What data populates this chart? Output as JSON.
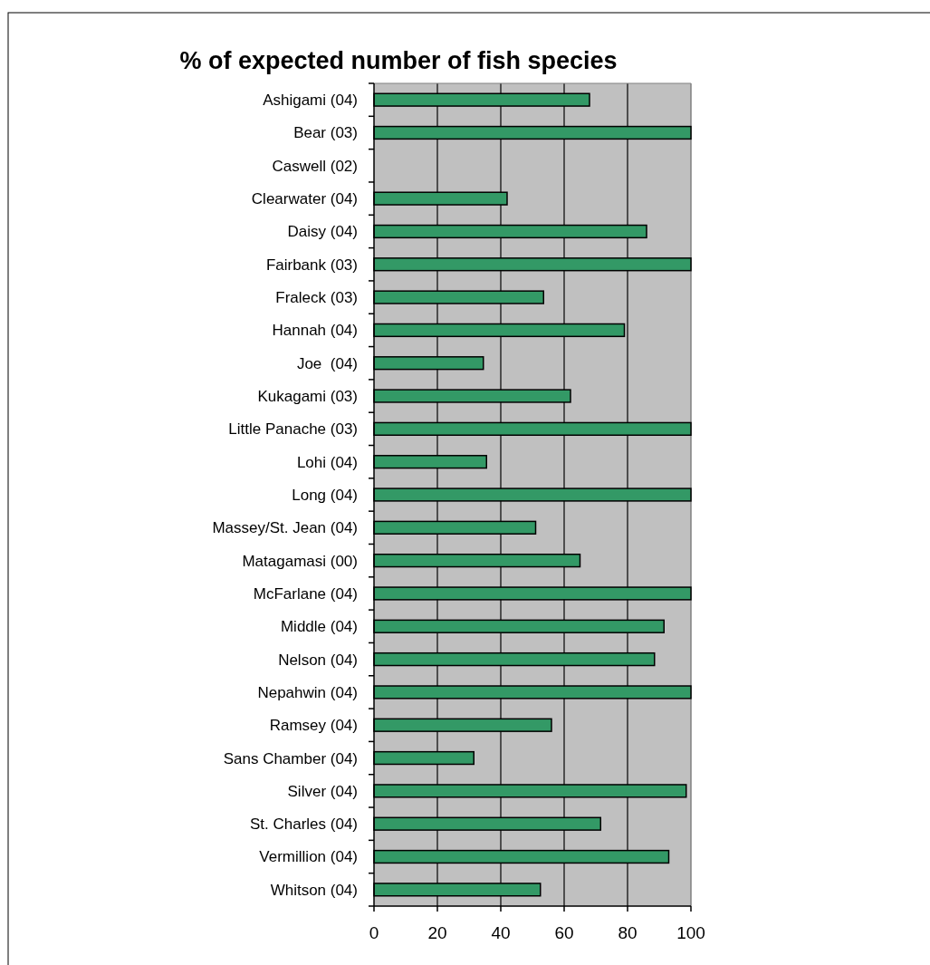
{
  "chart_data": {
    "type": "bar",
    "orientation": "horizontal",
    "title": "% of expected number of fish species",
    "categories": [
      "Ashigami (04)",
      "Bear (03)",
      "Caswell (02)",
      "Clearwater (04)",
      "Daisy (04)",
      "Fairbank (03)",
      "Fraleck (03)",
      "Hannah (04)",
      "Joe  (04)",
      "Kukagami (03)",
      "Little Panache (03)",
      "Lohi (04)",
      "Long (04)",
      "Massey/St. Jean (04)",
      "Matagamasi (00)",
      "McFarlane (04)",
      "Middle (04)",
      "Nelson (04)",
      "Nepahwin (04)",
      "Ramsey (04)",
      "Sans Chamber (04)",
      "Silver (04)",
      "St. Charles (04)",
      "Vermillion (04)",
      "Whitson (04)"
    ],
    "values": [
      68,
      100,
      null,
      42,
      86,
      100,
      53.5,
      79,
      34.5,
      62,
      100,
      35.5,
      100,
      51,
      65,
      100,
      91.5,
      88.5,
      100,
      56,
      31.5,
      98.5,
      71.5,
      93,
      52.5
    ],
    "color": "#339966",
    "xlim": [
      0,
      100
    ],
    "xticks": [
      0,
      20,
      40,
      60,
      80,
      100
    ],
    "grid": "x"
  }
}
